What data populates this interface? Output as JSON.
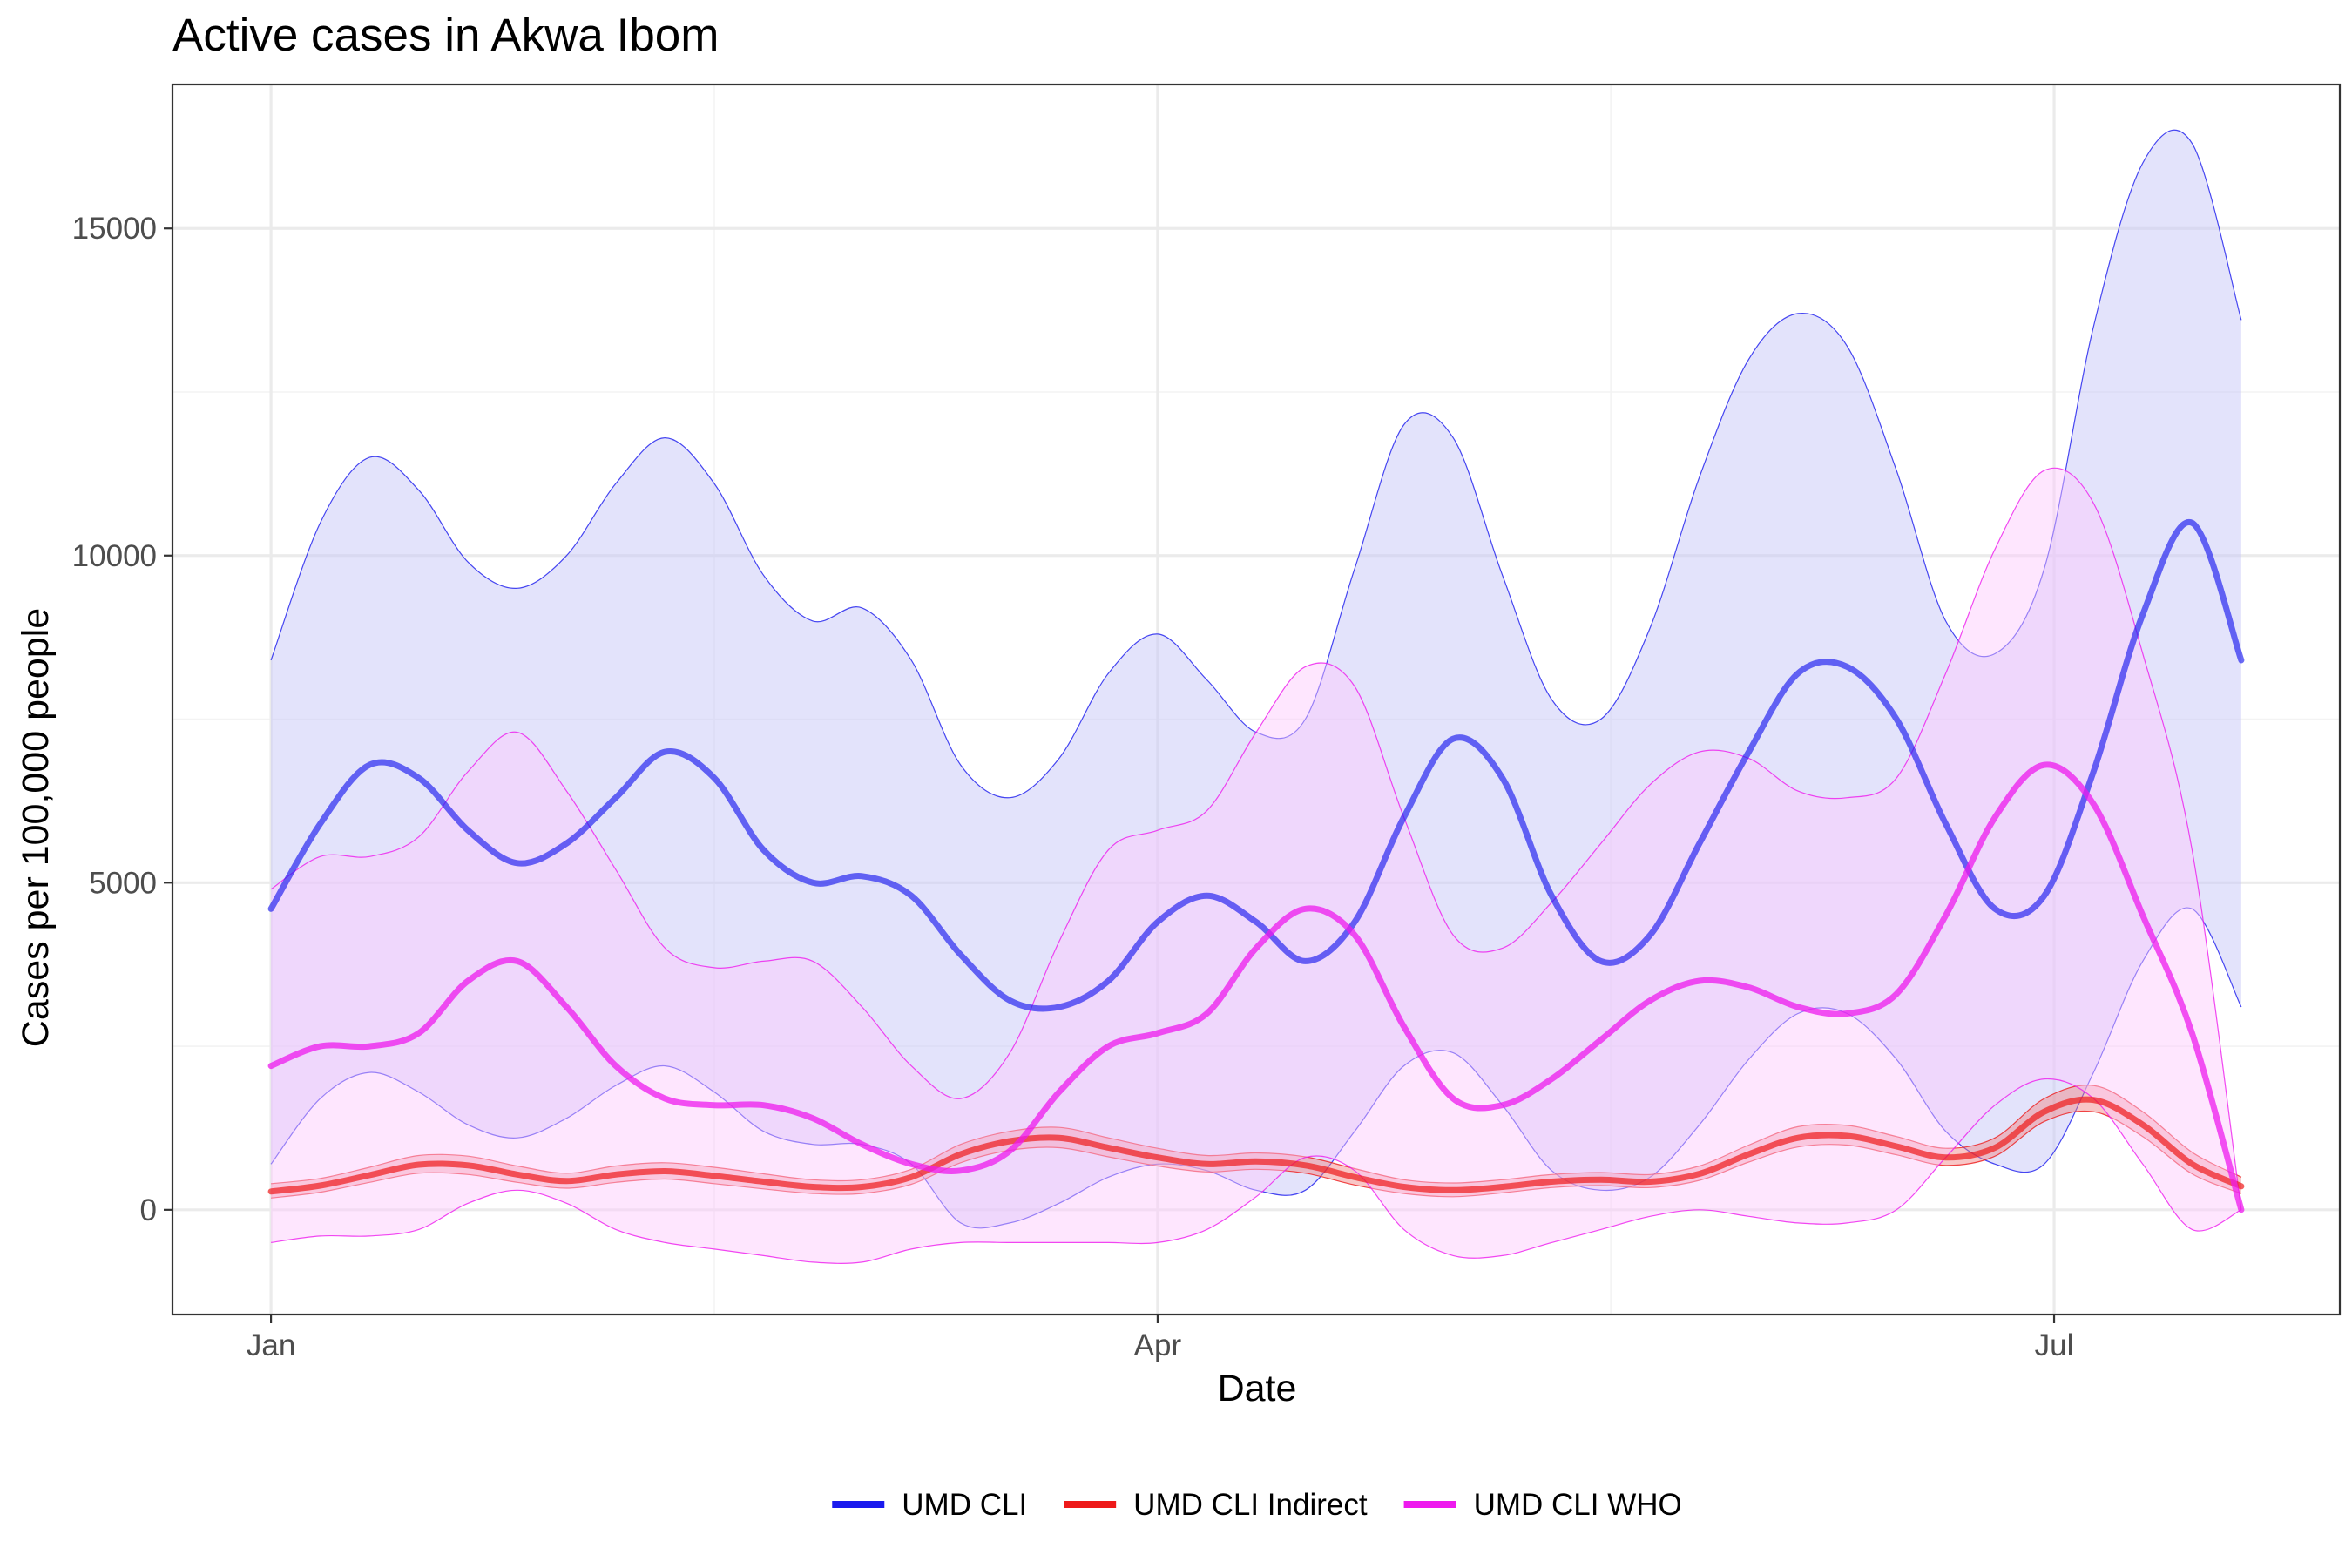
{
  "chart_data": {
    "type": "line",
    "title": "Active cases in Akwa Ibom",
    "xlabel": "Date",
    "ylabel": "Cases per 100,000 people",
    "x_ticks": [
      {
        "label": "Jan",
        "day": 0
      },
      {
        "label": "Apr",
        "day": 90
      },
      {
        "label": "Jul",
        "day": 181
      }
    ],
    "x_minor_days": [
      45,
      136
    ],
    "xlim": [
      -10,
      210
    ],
    "ylim": [
      -1600,
      17200
    ],
    "y_ticks": [
      0,
      5000,
      10000,
      15000
    ],
    "y_minor": [
      2500,
      7500,
      12500
    ],
    "grid": true,
    "legend_position": "bottom",
    "series": [
      {
        "name": "UMD CLI",
        "color": "#1a1aee",
        "fill": "#c8c8f8",
        "fill_opacity": 0.5,
        "line_opacity": 0.65,
        "x": [
          0,
          5,
          10,
          15,
          20,
          25,
          30,
          35,
          40,
          45,
          50,
          55,
          60,
          65,
          70,
          75,
          80,
          85,
          90,
          95,
          100,
          105,
          110,
          115,
          120,
          125,
          130,
          135,
          140,
          145,
          150,
          155,
          160,
          165,
          170,
          175,
          180,
          185,
          190,
          195,
          200
        ],
        "values": [
          4600,
          5900,
          6800,
          6600,
          5800,
          5300,
          5600,
          6300,
          7000,
          6600,
          5500,
          5000,
          5100,
          4800,
          3900,
          3200,
          3100,
          3500,
          4400,
          4800,
          4400,
          3800,
          4400,
          6000,
          7200,
          6600,
          4800,
          3800,
          4200,
          5600,
          7000,
          8200,
          8300,
          7500,
          5900,
          4600,
          4800,
          6700,
          9100,
          10500,
          8400
        ],
        "lower": [
          700,
          1700,
          2100,
          1800,
          1300,
          1100,
          1400,
          1900,
          2200,
          1800,
          1200,
          1000,
          1000,
          700,
          -200,
          -200,
          100,
          500,
          700,
          600,
          300,
          300,
          1200,
          2200,
          2400,
          1600,
          600,
          300,
          500,
          1300,
          2300,
          3000,
          3000,
          2300,
          1200,
          700,
          700,
          2100,
          3800,
          4600,
          3100
        ],
        "upper": [
          8400,
          10500,
          11500,
          11000,
          9900,
          9500,
          10000,
          11100,
          11800,
          11100,
          9700,
          9000,
          9200,
          8400,
          6800,
          6300,
          6900,
          8200,
          8800,
          8100,
          7300,
          7500,
          9800,
          12000,
          11800,
          9700,
          7800,
          7500,
          8900,
          11200,
          13000,
          13700,
          13200,
          11300,
          9000,
          8500,
          9800,
          13500,
          16000,
          16300,
          13600
        ]
      },
      {
        "name": "UMD CLI Indirect",
        "color": "#ee1a1a",
        "fill": "#f08080",
        "fill_opacity": 0.45,
        "line_opacity": 0.7,
        "x": [
          0,
          5,
          10,
          15,
          20,
          25,
          30,
          35,
          40,
          45,
          50,
          55,
          60,
          65,
          70,
          75,
          80,
          85,
          90,
          95,
          100,
          105,
          110,
          115,
          120,
          125,
          130,
          135,
          140,
          145,
          150,
          155,
          160,
          165,
          170,
          175,
          180,
          185,
          190,
          195,
          200
        ],
        "values": [
          280,
          370,
          530,
          690,
          680,
          540,
          440,
          540,
          590,
          520,
          430,
          350,
          350,
          500,
          850,
          1050,
          1100,
          950,
          800,
          700,
          740,
          680,
          500,
          350,
          300,
          350,
          430,
          460,
          430,
          550,
          850,
          1100,
          1130,
          970,
          800,
          950,
          1500,
          1680,
          1300,
          700,
          360
        ],
        "lower": [
          180,
          270,
          420,
          560,
          540,
          420,
          330,
          420,
          470,
          400,
          320,
          250,
          250,
          390,
          720,
          910,
          950,
          810,
          670,
          580,
          620,
          560,
          380,
          250,
          200,
          260,
          340,
          370,
          340,
          450,
          730,
          960,
          990,
          840,
          680,
          820,
          1350,
          1500,
          1120,
          550,
          250
        ],
        "upper": [
          400,
          480,
          650,
          830,
          820,
          670,
          560,
          670,
          720,
          650,
          550,
          460,
          460,
          620,
          1000,
          1200,
          1260,
          1100,
          940,
          830,
          870,
          810,
          630,
          460,
          410,
          460,
          540,
          570,
          540,
          670,
          990,
          1270,
          1290,
          1120,
          940,
          1100,
          1700,
          1900,
          1500,
          880,
          500
        ]
      },
      {
        "name": "UMD CLI WHO",
        "color": "#ee1aee",
        "fill": "#fcc8fc",
        "fill_opacity": 0.45,
        "line_opacity": 0.75,
        "x": [
          0,
          5,
          10,
          15,
          20,
          25,
          30,
          35,
          40,
          45,
          50,
          55,
          60,
          65,
          70,
          75,
          80,
          85,
          90,
          95,
          100,
          105,
          110,
          115,
          120,
          125,
          130,
          135,
          140,
          145,
          150,
          155,
          160,
          165,
          170,
          175,
          180,
          185,
          190,
          195,
          200
        ],
        "values": [
          2200,
          2500,
          2500,
          2700,
          3500,
          3800,
          3100,
          2200,
          1700,
          1600,
          1600,
          1400,
          1000,
          700,
          600,
          900,
          1800,
          2500,
          2700,
          3000,
          4000,
          4600,
          4200,
          2800,
          1700,
          1600,
          2000,
          2600,
          3200,
          3500,
          3400,
          3100,
          3000,
          3300,
          4500,
          6000,
          6800,
          6200,
          4500,
          2700,
          0
        ],
        "lower": [
          -500,
          -400,
          -400,
          -300,
          100,
          300,
          100,
          -300,
          -500,
          -600,
          -700,
          -800,
          -800,
          -600,
          -500,
          -500,
          -500,
          -500,
          -500,
          -300,
          200,
          800,
          600,
          -300,
          -700,
          -700,
          -500,
          -300,
          -100,
          0,
          -100,
          -200,
          -200,
          0,
          800,
          1600,
          2000,
          1700,
          700,
          -300,
          0
        ],
        "upper": [
          4900,
          5400,
          5400,
          5700,
          6700,
          7300,
          6400,
          5200,
          4000,
          3700,
          3800,
          3800,
          3100,
          2200,
          1700,
          2400,
          4100,
          5500,
          5800,
          6100,
          7300,
          8300,
          8000,
          6000,
          4200,
          4000,
          4700,
          5600,
          6500,
          7000,
          6900,
          6400,
          6300,
          6600,
          8200,
          10100,
          11300,
          10800,
          8500,
          5500,
          0
        ]
      }
    ]
  }
}
